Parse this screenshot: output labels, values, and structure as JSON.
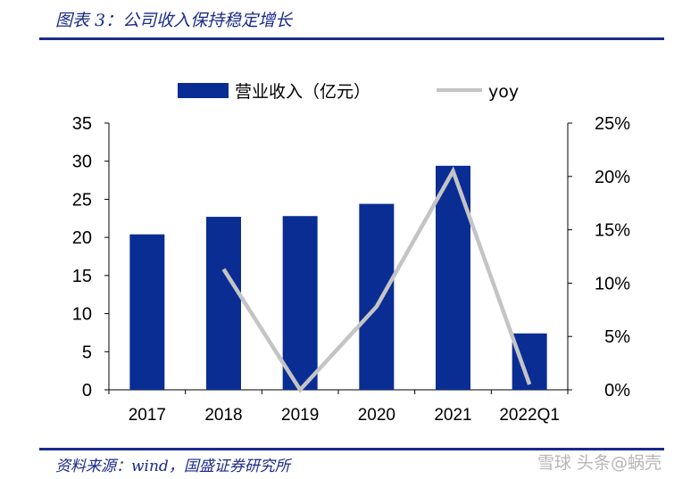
{
  "header": {
    "figure_title": "图表 3：公司收入保持稳定增长"
  },
  "footer": {
    "source": "资料来源：wind，国盛证券研究所",
    "watermark": "雪球 头条@蜗壳"
  },
  "colors": {
    "bar": "#0a2d94",
    "line": "#c4c4c4",
    "rule": "#1a2a8c"
  },
  "chart_data": {
    "type": "bar",
    "categories": [
      "2017",
      "2018",
      "2019",
      "2020",
      "2021",
      "2022Q1"
    ],
    "series": [
      {
        "name": "营业收入（亿元）",
        "type": "bar",
        "axis": "left",
        "values": [
          20.4,
          22.7,
          22.8,
          24.4,
          29.4,
          7.4
        ]
      },
      {
        "name": "yoy",
        "type": "line",
        "axis": "right",
        "values": [
          null,
          0.113,
          0.0,
          0.078,
          0.205,
          0.005
        ]
      }
    ],
    "y_left": {
      "lim": [
        0,
        35
      ],
      "ticks": [
        0,
        5,
        10,
        15,
        20,
        25,
        30,
        35
      ],
      "tick_labels": [
        "0",
        "5",
        "10",
        "15",
        "20",
        "25",
        "30",
        "35"
      ]
    },
    "y_right": {
      "lim": [
        0,
        0.25
      ],
      "ticks": [
        0,
        0.05,
        0.1,
        0.15,
        0.2,
        0.25
      ],
      "tick_labels": [
        "0%",
        "5%",
        "10%",
        "15%",
        "20%",
        "25%"
      ]
    },
    "legend": {
      "position": "top",
      "labels": [
        "营业收入（亿元）",
        "yoy"
      ]
    },
    "grid": false,
    "title": "",
    "xlabel": "",
    "ylabel": ""
  }
}
